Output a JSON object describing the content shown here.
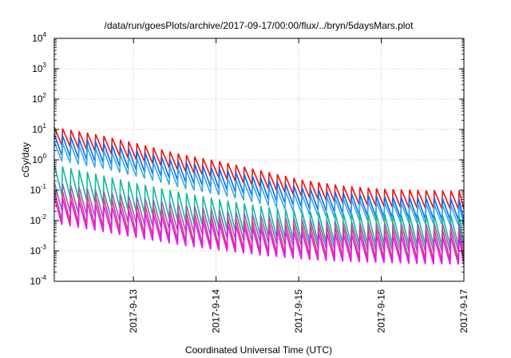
{
  "chart_data": {
    "type": "line",
    "title": "/data/run/goesPlots/archive/2017-09-17/00:00/flux/../bryn/5daysMars.plot",
    "xlabel": "Coordinated Universal Time (UTC)",
    "ylabel": "cGy/day",
    "y_scale": "log",
    "ylim": [
      0.0001,
      10000
    ],
    "xlim": [
      "2017-09-12 01:00",
      "2017-09-17 00:00"
    ],
    "grid": true,
    "legend": "none",
    "x_ticks": [
      "2017-9-13",
      "2017-9-14",
      "2017-9-15",
      "2017-9-16",
      "2017-9-17"
    ],
    "y_ticks": [
      {
        "base": "10",
        "exp": "-4"
      },
      {
        "base": "10",
        "exp": "-3"
      },
      {
        "base": "10",
        "exp": "-2"
      },
      {
        "base": "10",
        "exp": "-1"
      },
      {
        "base": "10",
        "exp": "0"
      },
      {
        "base": "10",
        "exp": "1"
      },
      {
        "base": "10",
        "exp": "2"
      },
      {
        "base": "10",
        "exp": "3"
      },
      {
        "base": "10",
        "exp": "4"
      }
    ],
    "sawtooth_cycle_hours": 2.4,
    "series": [
      {
        "color": "#ee1111",
        "peaks": [
          [
            0,
            12
          ],
          [
            0.5,
            7
          ],
          [
            1,
            3.5
          ],
          [
            1.5,
            1.6
          ],
          [
            2,
            0.9
          ],
          [
            2.5,
            0.45
          ],
          [
            3,
            0.22
          ],
          [
            3.5,
            0.14
          ],
          [
            4,
            0.11
          ],
          [
            4.5,
            0.1
          ],
          [
            4.95,
            0.095
          ]
        ],
        "dip_factor": 0.25
      },
      {
        "color": "#1166ee",
        "peaks": [
          [
            0,
            7
          ],
          [
            0.5,
            4
          ],
          [
            1,
            2
          ],
          [
            1.5,
            0.9
          ],
          [
            2,
            0.5
          ],
          [
            2.5,
            0.25
          ],
          [
            3,
            0.12
          ],
          [
            3.5,
            0.08
          ],
          [
            4,
            0.06
          ],
          [
            4.5,
            0.055
          ],
          [
            4.95,
            0.05
          ]
        ],
        "dip_factor": 0.2
      },
      {
        "color": "#33aaee",
        "peaks": [
          [
            0,
            4
          ],
          [
            0.5,
            2.3
          ],
          [
            1,
            1.1
          ],
          [
            1.5,
            0.5
          ],
          [
            2,
            0.28
          ],
          [
            2.5,
            0.14
          ],
          [
            3,
            0.07
          ],
          [
            3.5,
            0.05
          ],
          [
            4,
            0.04
          ],
          [
            4.5,
            0.035
          ],
          [
            4.95,
            0.03
          ]
        ],
        "dip_factor": 0.22
      },
      {
        "color": "#11bb99",
        "peaks": [
          [
            0,
            0.7
          ],
          [
            0.5,
            0.35
          ],
          [
            1,
            0.17
          ],
          [
            1.5,
            0.09
          ],
          [
            2,
            0.05
          ],
          [
            2.5,
            0.03
          ],
          [
            3,
            0.02
          ],
          [
            3.5,
            0.017
          ],
          [
            4,
            0.016
          ],
          [
            4.5,
            0.015
          ],
          [
            4.95,
            0.015
          ]
        ],
        "dip_factor": 0.1
      },
      {
        "color": "#8866bb",
        "peaks": [
          [
            0,
            0.18
          ],
          [
            0.5,
            0.1
          ],
          [
            1,
            0.06
          ],
          [
            1.5,
            0.035
          ],
          [
            2,
            0.022
          ],
          [
            2.5,
            0.015
          ],
          [
            3,
            0.011
          ],
          [
            3.5,
            0.009
          ],
          [
            4,
            0.0085
          ],
          [
            4.5,
            0.008
          ],
          [
            4.95,
            0.008
          ]
        ],
        "dip_factor": 0.12
      },
      {
        "color": "#cc4477",
        "peaks": [
          [
            0,
            0.1
          ],
          [
            0.5,
            0.06
          ],
          [
            1,
            0.035
          ],
          [
            1.5,
            0.02
          ],
          [
            2,
            0.013
          ],
          [
            2.5,
            0.009
          ],
          [
            3,
            0.007
          ],
          [
            3.5,
            0.006
          ],
          [
            4,
            0.0055
          ],
          [
            4.5,
            0.005
          ],
          [
            4.95,
            0.005
          ]
        ],
        "dip_factor": 0.1
      },
      {
        "color": "#ee11ee",
        "peaks": [
          [
            0,
            0.06
          ],
          [
            0.5,
            0.035
          ],
          [
            1,
            0.02
          ],
          [
            1.5,
            0.012
          ],
          [
            2,
            0.008
          ],
          [
            2.5,
            0.0055
          ],
          [
            3,
            0.0042
          ],
          [
            3.5,
            0.0036
          ],
          [
            4,
            0.0033
          ],
          [
            4.5,
            0.003
          ],
          [
            4.95,
            0.003
          ]
        ],
        "dip_factor": 0.12
      }
    ]
  }
}
